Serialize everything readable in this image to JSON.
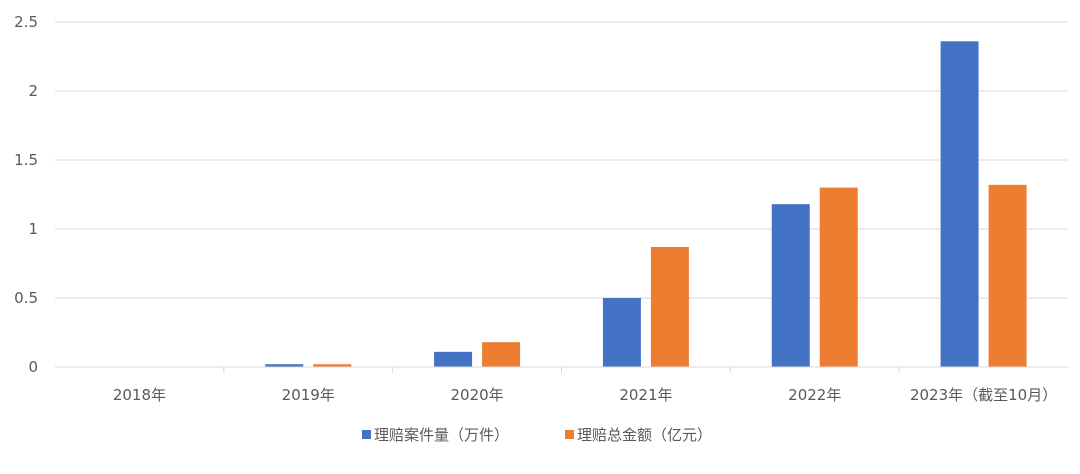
{
  "chart_data": {
    "type": "bar",
    "title": "",
    "xlabel": "",
    "ylabel": "",
    "ylim": [
      0,
      2.5
    ],
    "yticks": [
      "0",
      "0.5",
      "1",
      "1.5",
      "2",
      "2.5"
    ],
    "ytick_values": [
      0,
      0.5,
      1,
      1.5,
      2,
      2.5
    ],
    "grid": true,
    "legend_position": "bottom",
    "categories": [
      "2018年",
      "2019年",
      "2020年",
      "2021年",
      "2022年",
      "2023年（截至10月）"
    ],
    "series": [
      {
        "name": "理赔案件量（万件）",
        "color": "#4472C4",
        "values": [
          0,
          0.02,
          0.11,
          0.5,
          1.18,
          2.36
        ]
      },
      {
        "name": "理赔总金额（亿元）",
        "color": "#ED7D31",
        "values": [
          0,
          0.02,
          0.18,
          0.87,
          1.3,
          1.32
        ]
      }
    ]
  }
}
